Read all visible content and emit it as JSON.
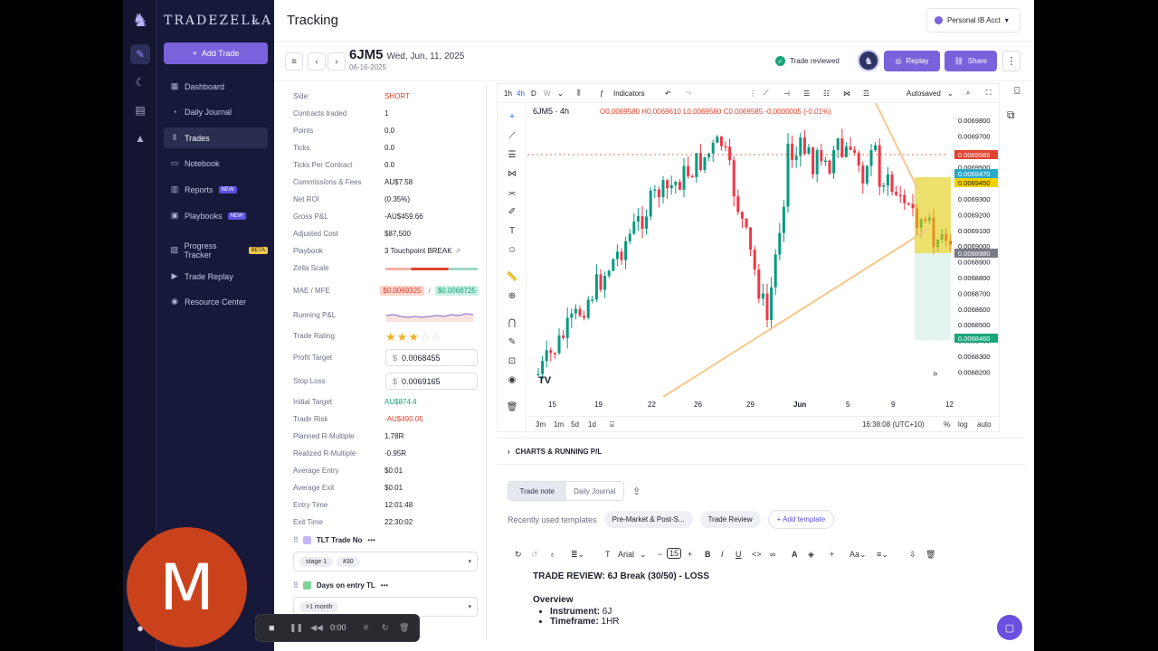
{
  "rail": {
    "icons": [
      "logo-icon",
      "journal-icon",
      "moon-icon",
      "wallet-icon",
      "academy-icon"
    ]
  },
  "sidebar": {
    "brand": "TRADEZELLA",
    "add_trade": "Add Trade",
    "items": [
      {
        "label": "Dashboard",
        "badge": ""
      },
      {
        "label": "Daily Journal",
        "badge": ""
      },
      {
        "label": "Trades",
        "badge": ""
      },
      {
        "label": "Notebook",
        "badge": ""
      },
      {
        "label": "Reports",
        "badge": "NEW"
      },
      {
        "label": "Playbooks",
        "badge": "NEW"
      },
      {
        "label": "Progress Tracker",
        "badge": "BETA"
      },
      {
        "label": "Trade Replay",
        "badge": ""
      },
      {
        "label": "Resource Center",
        "badge": ""
      }
    ]
  },
  "topbar": {
    "title": "Tracking",
    "account": "Personal IB Acct"
  },
  "trade": {
    "symbol": "6JM5",
    "date_long": "Wed, Jun, 11, 2025",
    "date_short": "06-16-2025",
    "reviewed": "Trade reviewed",
    "replay": "Replay",
    "share": "Share"
  },
  "stats": [
    {
      "k": "Side",
      "v": "SHORT"
    },
    {
      "k": "Contracts traded",
      "v": "1"
    },
    {
      "k": "Points",
      "v": "0.0"
    },
    {
      "k": "Ticks",
      "v": "0.0"
    },
    {
      "k": "Ticks Per Contract",
      "v": "0.0"
    },
    {
      "k": "Commissions & Fees",
      "v": "AU$7.58"
    },
    {
      "k": "Net ROI",
      "v": "(0.35%)"
    },
    {
      "k": "Gross P&L",
      "v": "-AU$459.66"
    },
    {
      "k": "Adjusted Cost",
      "v": "$87,500"
    },
    {
      "k": "Playbook",
      "v": "3 Touchpoint BREAK"
    },
    {
      "k": "Zella Scale",
      "v": ""
    },
    {
      "k": "MAE / MFE",
      "v": ""
    },
    {
      "k": "Running P&L",
      "v": ""
    },
    {
      "k": "Trade Rating",
      "v": ""
    },
    {
      "k": "Profit Target",
      "v": "0.0068455"
    },
    {
      "k": "Stop Loss",
      "v": "0.0069165"
    },
    {
      "k": "Initial Target",
      "v": "AU$874.4"
    },
    {
      "k": "Trade Risk",
      "v": "-AU$490.05"
    },
    {
      "k": "Planned R-Multiple",
      "v": "1.78R"
    },
    {
      "k": "Realized R-Multiple",
      "v": "-0.95R"
    },
    {
      "k": "Average Entry",
      "v": "$0.01"
    },
    {
      "k": "Average Exit",
      "v": "$0.01"
    },
    {
      "k": "Entry Time",
      "v": "12:01:48"
    },
    {
      "k": "Exit Time",
      "v": "22:30:02"
    }
  ],
  "mae": "$0.0069325",
  "mfe": "$0.0068725",
  "currency": "$",
  "rating": 3,
  "tags": [
    {
      "title": "TLT Trade No",
      "chips": [
        "stage 1",
        "#30"
      ]
    },
    {
      "title": "Days on entry TL",
      "chips": [
        ">1 month"
      ]
    }
  ],
  "chart": {
    "timeframes": [
      "1h",
      "4h",
      "D",
      "W"
    ],
    "indicators": "Indicators",
    "autosaved": "Autosaved",
    "legend": "6JM5 · 4h",
    "ohlc": "O0.0069580 H0.0069610 L0.0069580 C0.0069585 -0.0000005 (-0.01%)",
    "price_ticks": [
      "0.0069800",
      "0.0069700",
      "0.0069600",
      "0.0069500",
      "0.0069400",
      "0.0069300",
      "0.0069200",
      "0.0069100",
      "0.0069000",
      "0.0068900",
      "0.0068800",
      "0.0068700",
      "0.0068600",
      "0.0068500",
      "0.0068400",
      "0.0068300",
      "0.0068200"
    ],
    "price_tags": [
      {
        "text": "0.0069585",
        "color": "#e0432f"
      },
      {
        "text": "0.0069470",
        "color": "#2aa9c9"
      },
      {
        "text": "0.0069450",
        "color": "#f5d000"
      },
      {
        "text": "0.0068980",
        "color": "#787b86"
      },
      {
        "text": "0.0068460",
        "color": "#19a47a"
      }
    ],
    "date_ticks": [
      "15",
      "19",
      "22",
      "26",
      "29",
      "Jun",
      "5",
      "9",
      "12"
    ],
    "ranges": [
      "3m",
      "1m",
      "5d",
      "1d"
    ],
    "clock": "16:38:08 (UTC+10)",
    "scale_opts": [
      "%",
      "log",
      "auto"
    ]
  },
  "charts_section": "CHARTS & RUNNING P/L",
  "notes": {
    "tabs": [
      "Trade note",
      "Daily Journal"
    ],
    "recent_label": "Recently used templates",
    "templates": [
      "Pre-Market & Post-S...",
      "Trade Review"
    ],
    "add_template": "+ Add template",
    "font": "Arial",
    "font_size": "15",
    "doc_title": "TRADE REVIEW: 6J Break (30/50) - LOSS",
    "doc_h": "Overview",
    "doc_items": [
      {
        "k": "Instrument:",
        "v": "6J"
      },
      {
        "k": "Timeframe:",
        "v": "1HR"
      }
    ]
  },
  "overlay": {
    "avatar_letter": "M",
    "rec_time": "0:00"
  }
}
